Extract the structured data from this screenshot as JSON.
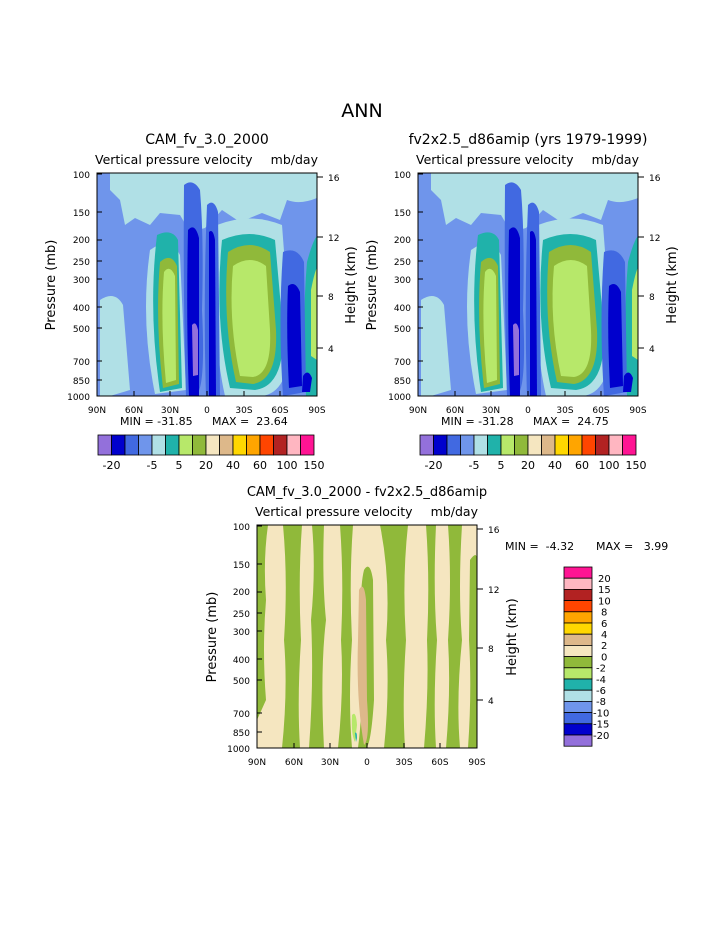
{
  "page_title": "ANN",
  "colors": {
    "p20n": "#9370db",
    "p15n": "#0000cd",
    "p10n": "#4169e1",
    "p5n": "#6f95eb",
    "p2n": "#b0e0e6",
    "p0n": "#20b2aa",
    "p5": "#b7e86a",
    "p10": "#90b93a",
    "p20": "#f5e6c0",
    "p30": "#ddb88a",
    "p40": "#ffd700",
    "p60": "#ffa500",
    "p80": "#ff4500",
    "p100": "#b22222",
    "p120": "#ffb6c1",
    "p150": "#ff1493",
    "d_n20": "#9370db",
    "d_n15": "#0000cd",
    "d_n10": "#4169e1",
    "d_n8": "#6f95eb",
    "d_n6": "#b0e0e6",
    "d_n4": "#20b2aa",
    "d_n2": "#b7e86a",
    "d_0": "#90b93a",
    "d_2": "#f5e6c0",
    "d_4": "#ddb88a",
    "d_6": "#ffd700",
    "d_8": "#ffa500",
    "d_10": "#ff4500",
    "d_15": "#b22222",
    "d_20": "#ffb6c1",
    "d_top": "#ff1493"
  },
  "chart_data": [
    {
      "type": "heatmap",
      "title": "CAM_fv_3.0_2000",
      "subtitle_left": "Vertical pressure velocity",
      "subtitle_right": "mb/day",
      "ylabel": "Pressure (mb)",
      "y2label": "Height (km)",
      "xticks": [
        "90N",
        "60N",
        "30N",
        "0",
        "30S",
        "60S",
        "90S"
      ],
      "yticks": [
        "100",
        "150",
        "200",
        "250",
        "300",
        "400",
        "500",
        "700",
        "850",
        "1000"
      ],
      "y2ticks": [
        "16",
        "12",
        "8",
        "4"
      ],
      "min_label": "MIN = -31.85",
      "max_label": "MAX =  23.64",
      "contour_levels": [
        -20,
        -15,
        -10,
        -5,
        -2,
        0,
        5,
        10,
        20,
        30,
        40,
        60,
        80,
        100,
        120,
        150
      ],
      "colorbar_labels": [
        "-20",
        "-5",
        "5",
        "20",
        "40",
        "60",
        "100",
        "150"
      ]
    },
    {
      "type": "heatmap",
      "title": "fv2x2.5_d86amip (yrs 1979-1999)",
      "subtitle_left": "Vertical pressure velocity",
      "subtitle_right": "mb/day",
      "ylabel": "Pressure (mb)",
      "y2label": "Height (km)",
      "xticks": [
        "90N",
        "60N",
        "30N",
        "0",
        "30S",
        "60S",
        "90S"
      ],
      "yticks": [
        "100",
        "150",
        "200",
        "250",
        "300",
        "400",
        "500",
        "700",
        "850",
        "1000"
      ],
      "y2ticks": [
        "16",
        "12",
        "8",
        "4"
      ],
      "min_label": "MIN = -31.28",
      "max_label": "MAX =  24.75",
      "contour_levels": [
        -20,
        -15,
        -10,
        -5,
        -2,
        0,
        5,
        10,
        20,
        30,
        40,
        60,
        80,
        100,
        120,
        150
      ],
      "colorbar_labels": [
        "-20",
        "-5",
        "5",
        "20",
        "40",
        "60",
        "100",
        "150"
      ]
    },
    {
      "type": "heatmap",
      "title": "CAM_fv_3.0_2000 - fv2x2.5_d86amip",
      "subtitle_left": "Vertical pressure velocity",
      "subtitle_right": "mb/day",
      "ylabel": "Pressure (mb)",
      "y2label": "Height (km)",
      "xticks": [
        "90N",
        "60N",
        "30N",
        "0",
        "30S",
        "60S",
        "90S"
      ],
      "yticks": [
        "100",
        "150",
        "200",
        "250",
        "300",
        "400",
        "500",
        "700",
        "850",
        "1000"
      ],
      "y2ticks": [
        "16",
        "12",
        "8",
        "4"
      ],
      "min_label": "MIN =  -4.32",
      "max_label": "MAX =   3.99",
      "contour_levels": [
        -20,
        -15,
        -10,
        -8,
        -6,
        -4,
        -2,
        0,
        2,
        4,
        6,
        8,
        10,
        15,
        20
      ],
      "colorbar_labels": [
        "20",
        "15",
        "10",
        "8",
        "6",
        "4",
        "2",
        "0",
        "-2",
        "-4",
        "-6",
        "-8",
        "-10",
        "-15",
        "-20"
      ]
    }
  ]
}
